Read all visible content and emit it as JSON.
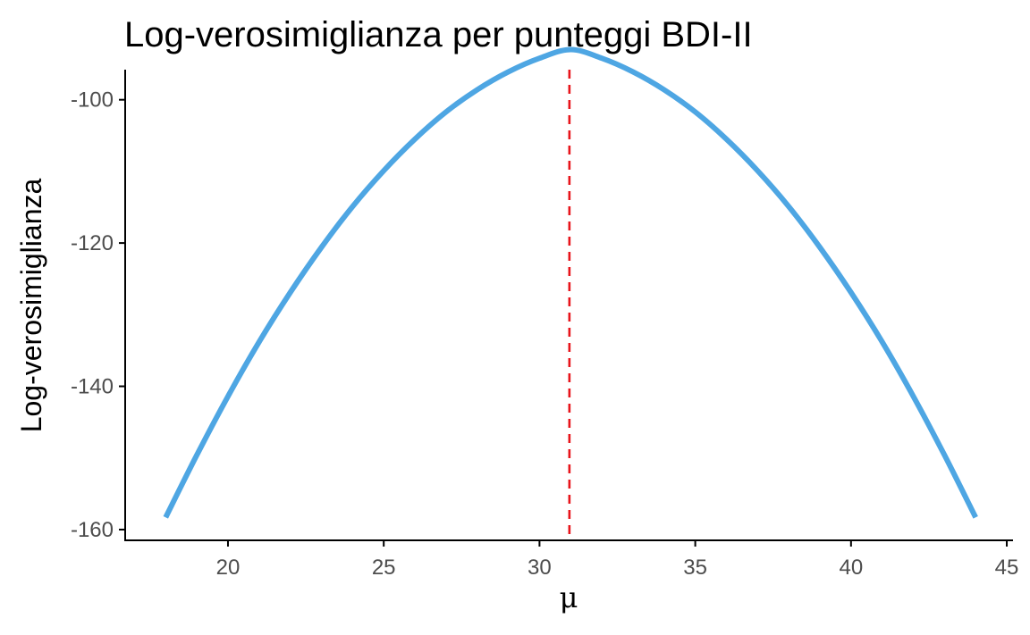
{
  "chart_data": {
    "type": "line",
    "title": "Log-verosimiglianza per punteggi BDI-II",
    "xlabel": "μ",
    "ylabel": "Log-verosimiglianza",
    "xlim": [
      16.7,
      45.2
    ],
    "ylim": [
      -161.5,
      -95.8
    ],
    "x_ticks": [
      20,
      25,
      30,
      35,
      40,
      45
    ],
    "y_ticks": [
      -100,
      -120,
      -140,
      -160
    ],
    "x_tick_labels": [
      "20",
      "25",
      "30",
      "35",
      "40",
      "45"
    ],
    "y_tick_labels": [
      "-100",
      "-120",
      "-140",
      "-160"
    ],
    "series": [
      {
        "color": "#4ea6e3",
        "x": [
          18,
          19,
          20,
          21,
          22,
          23,
          24,
          25,
          26,
          27,
          28,
          29,
          30,
          31,
          32,
          33,
          34,
          35,
          36,
          37,
          38,
          39,
          40,
          41,
          42,
          43,
          44
        ],
        "y": [
          -158.3,
          -149.6,
          -141.4,
          -133.8,
          -126.9,
          -120.6,
          -114.9,
          -109.9,
          -105.5,
          -101.7,
          -98.6,
          -96.1,
          -94.2,
          -93.0,
          -94.2,
          -96.1,
          -98.6,
          -101.7,
          -105.5,
          -109.9,
          -114.9,
          -120.6,
          -126.9,
          -133.8,
          -141.4,
          -149.6,
          -158.3
        ]
      }
    ],
    "reference_line": {
      "x": 30.96,
      "color": "#e8141b",
      "style": "dashed"
    },
    "grid": false,
    "legend": "none"
  }
}
